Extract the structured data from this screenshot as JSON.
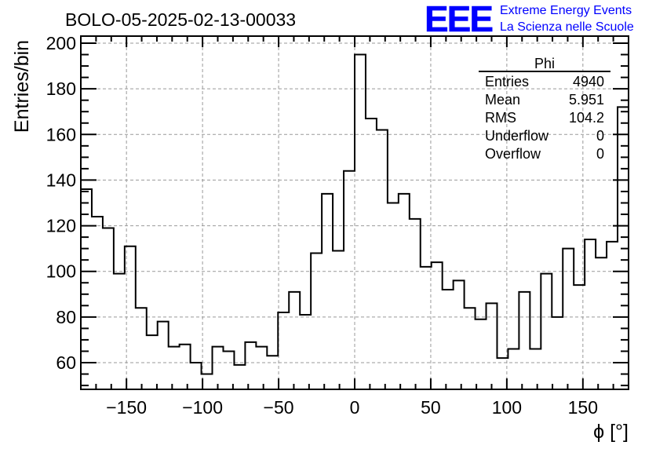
{
  "header": {
    "run_title": "BOLO-05-2025-02-13-00033",
    "logo_text": "EEE",
    "logo_line1": "Extreme Energy Events",
    "logo_line2": "La Scienza nelle Scuole"
  },
  "stats": {
    "title": "Phi",
    "rows": [
      {
        "label": "Entries",
        "value": "4940"
      },
      {
        "label": "Mean",
        "value": "5.951"
      },
      {
        "label": "RMS",
        "value": "104.2"
      },
      {
        "label": "Underflow",
        "value": "0"
      },
      {
        "label": "Overflow",
        "value": "0"
      }
    ]
  },
  "colors": {
    "line": "#000000",
    "grid": "#999999",
    "logo": "#0000ff"
  },
  "chart_data": {
    "type": "bar",
    "style": "step-histogram",
    "title": "BOLO-05-2025-02-13-00033",
    "xlabel": "ϕ [°]",
    "ylabel": "Entries/bin",
    "xlim": [
      -180,
      180
    ],
    "ylim": [
      48.3,
      203.1
    ],
    "bin_width": 7.2,
    "xticks": [
      -150,
      -100,
      -50,
      0,
      50,
      100,
      150
    ],
    "xtick_labels": [
      "−150",
      "−100",
      "−50",
      "0",
      "50",
      "100",
      "150"
    ],
    "yticks": [
      60,
      80,
      100,
      120,
      140,
      160,
      180,
      200
    ],
    "ytick_labels": [
      "60",
      "80",
      "100",
      "120",
      "140",
      "160",
      "180",
      "200"
    ],
    "grid": true,
    "values": [
      136,
      124,
      119,
      99,
      111,
      84,
      72,
      78,
      67,
      68,
      60,
      55,
      67,
      65,
      59,
      69,
      67,
      63,
      82,
      91,
      81,
      108,
      134,
      109,
      144,
      195,
      167,
      162,
      130,
      134,
      123,
      102,
      104,
      92,
      96,
      84,
      79,
      86,
      62,
      66,
      91,
      66,
      99,
      80,
      110,
      94,
      114,
      106,
      113,
      172
    ]
  }
}
